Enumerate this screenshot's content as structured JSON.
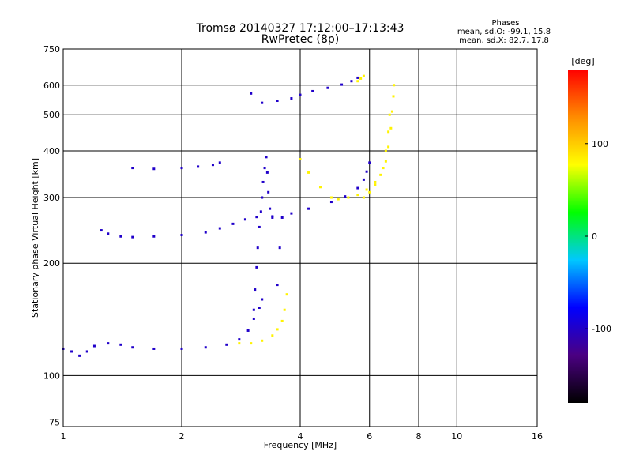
{
  "chart_data": {
    "type": "scatter",
    "title": "Tromsø 20140327 17:12:00–17:13:43",
    "subtitle": "RwPretec (8p)",
    "xlabel": "Frequency [MHz]",
    "ylabel": "Stationary phase Virtual Height [km]",
    "x_scale": "log",
    "y_scale": "log",
    "xlim": [
      1,
      16
    ],
    "ylim": [
      73,
      750
    ],
    "x_ticks": [
      1,
      2,
      4,
      6,
      8,
      10,
      16
    ],
    "y_ticks": [
      75,
      100,
      200,
      300,
      400,
      500,
      600,
      750
    ],
    "grid": true,
    "phases": {
      "title": "Phases",
      "line_o": "mean, sd,O: -99.1, 15.8",
      "line_x": "mean, sd,X:  82.7, 17.8"
    },
    "colorbar": {
      "label": "[deg]",
      "range": [
        -180,
        180
      ],
      "ticks": [
        100,
        0,
        -100
      ],
      "colors": [
        "#000000",
        "#4b0082",
        "#0000ff",
        "#00c8ff",
        "#00ff00",
        "#ffff00",
        "#ff8c00",
        "#ff0000"
      ]
    },
    "colors": {
      "o_mode": "#2846e6",
      "x_mode": "#e6e61e",
      "vertical": "#5a28b4"
    },
    "series": [
      {
        "phase_mean": -99.1,
        "traces": [
          {
            "x": [
              1.0,
              1.05,
              1.1,
              1.15,
              1.2,
              1.3,
              1.4,
              1.5,
              1.7,
              2.0,
              2.3,
              2.6,
              2.8,
              2.95,
              3.05,
              3.15,
              3.2
            ],
            "y": [
              118,
              116,
              113,
              116,
              120,
              122,
              121,
              119,
              118,
              118,
              119,
              121,
              125,
              132,
              142,
              152,
              160
            ]
          },
          {
            "x": [
              1.25,
              1.3,
              1.4,
              1.5,
              1.7,
              2.0,
              2.3,
              2.5,
              2.7,
              2.9,
              3.1,
              3.4,
              3.8,
              4.2,
              4.8,
              5.2,
              5.6,
              5.8,
              5.9,
              6.0
            ],
            "y": [
              245,
              240,
              236,
              235,
              236,
              238,
              242,
              248,
              255,
              262,
              266,
              267,
              272,
              280,
              292,
              302,
              318,
              335,
              352,
              372
            ]
          },
          {
            "x": [
              1.5,
              1.7,
              2.0,
              2.2,
              2.4,
              2.5
            ],
            "y": [
              360,
              358,
              360,
              363,
              367,
              372
            ]
          },
          {
            "x": [
              3.0,
              3.2,
              3.5,
              3.8,
              4.0,
              4.3,
              4.7,
              5.1,
              5.4,
              5.6
            ],
            "y": [
              570,
              538,
              545,
              553,
              565,
              578,
              590,
              602,
              615,
              628
            ]
          },
          {
            "x": [
              3.05,
              3.07,
              3.1,
              3.12,
              3.15,
              3.18,
              3.2,
              3.22,
              3.25,
              3.28,
              3.3,
              3.32,
              3.35,
              3.4
            ],
            "y": [
              150,
              170,
              195,
              220,
              250,
              275,
              300,
              330,
              360,
              385,
              350,
              310,
              280,
              265
            ]
          },
          {
            "x": [
              3.5,
              3.55,
              3.6
            ],
            "y": [
              175,
              220,
              265
            ]
          }
        ]
      },
      {
        "phase_mean": 82.7,
        "traces": [
          {
            "x": [
              2.8,
              3.0,
              3.2,
              3.4,
              3.5,
              3.6,
              3.65,
              3.7
            ],
            "y": [
              122,
              122,
              124,
              128,
              133,
              140,
              150,
              165
            ]
          },
          {
            "x": [
              4.0,
              4.2,
              4.5,
              4.8,
              5.0,
              5.3,
              5.6,
              5.9,
              6.2,
              6.5,
              6.6,
              6.7,
              6.75
            ],
            "y": [
              380,
              350,
              320,
              300,
              297,
              300,
              305,
              315,
              330,
              360,
              400,
              450,
              500
            ]
          },
          {
            "x": [
              5.8,
              6.0,
              6.2,
              6.4,
              6.6,
              6.7,
              6.8,
              6.85,
              6.9,
              6.92
            ],
            "y": [
              300,
              310,
              325,
              345,
              375,
              410,
              460,
              510,
              560,
              600
            ]
          },
          {
            "x": [
              5.6,
              5.7,
              5.8
            ],
            "y": [
              615,
              625,
              635
            ]
          }
        ]
      }
    ]
  }
}
